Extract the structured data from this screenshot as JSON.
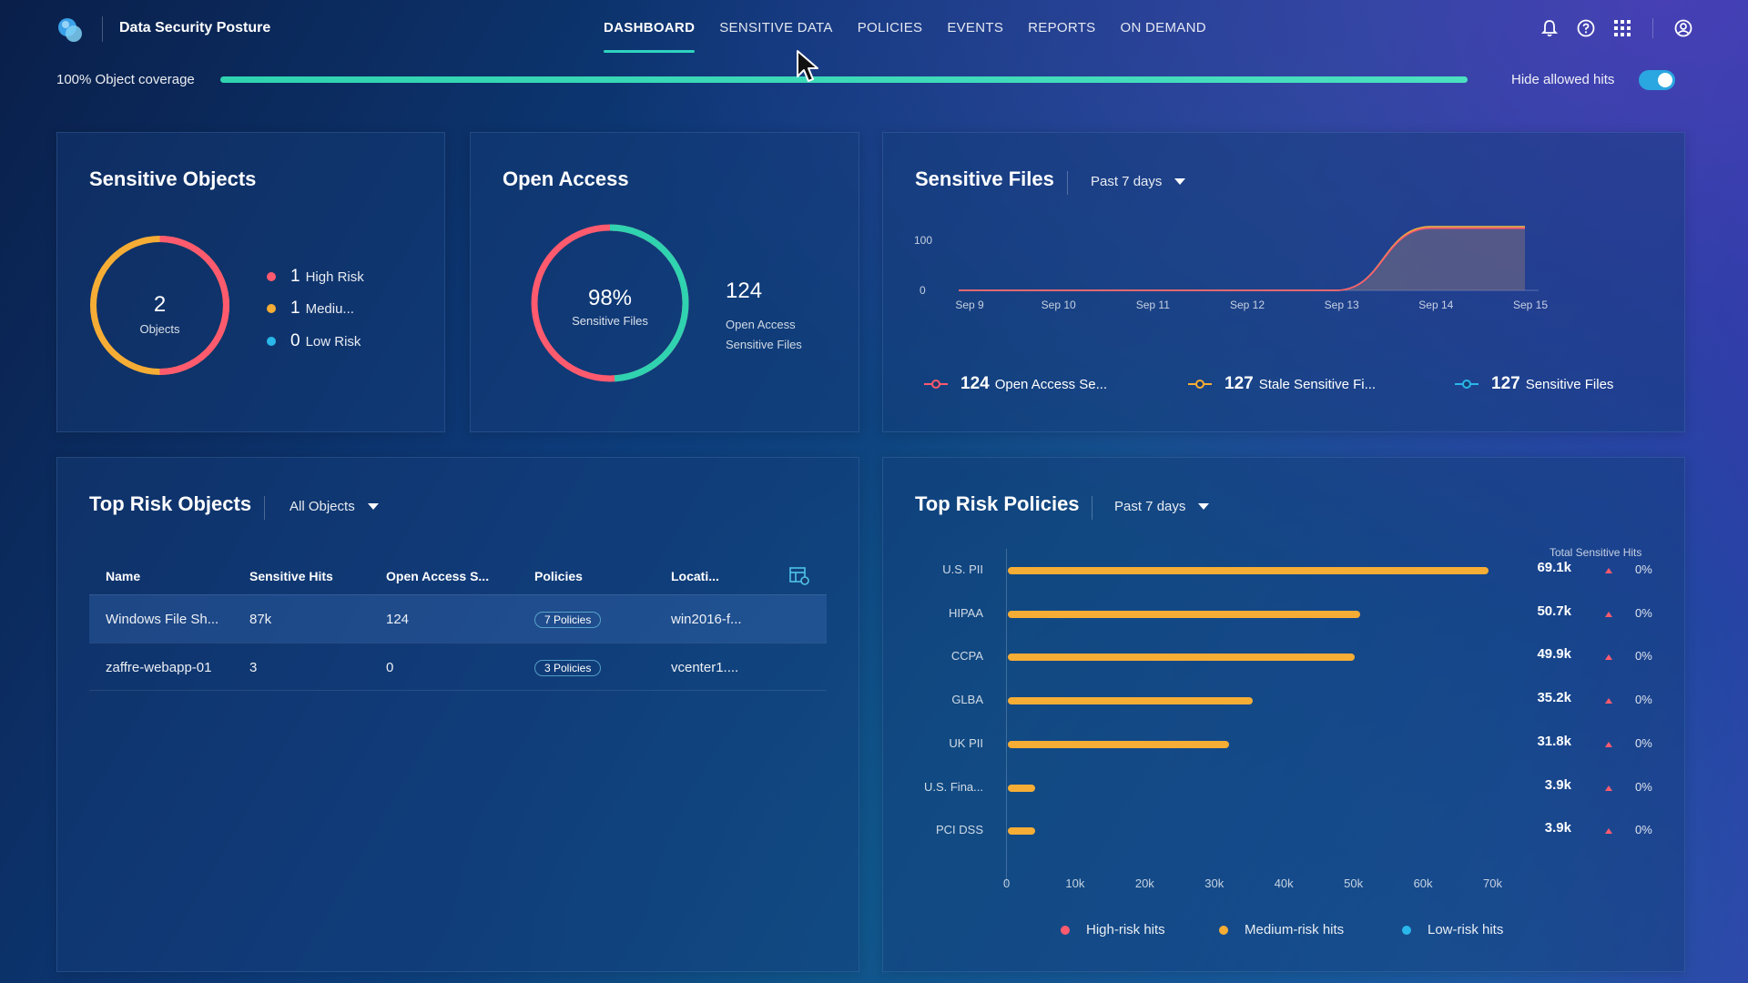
{
  "app": {
    "title": "Data Security Posture"
  },
  "nav": [
    {
      "label": "DASHBOARD",
      "active": true
    },
    {
      "label": "SENSITIVE DATA",
      "active": false
    },
    {
      "label": "POLICIES",
      "active": false
    },
    {
      "label": "EVENTS",
      "active": false
    },
    {
      "label": "REPORTS",
      "active": false
    },
    {
      "label": "ON DEMAND",
      "active": false
    }
  ],
  "header_icons": [
    "bell-icon",
    "help-icon",
    "apps-grid-icon",
    "user-account-icon"
  ],
  "coverage": {
    "label": "100% Object coverage",
    "value": 1.0
  },
  "hide_allowed": {
    "label": "Hide allowed hits",
    "enabled": true
  },
  "colors": {
    "high": "#ff5a6e",
    "medium": "#f6ad35",
    "low": "#2ab7ea",
    "accent": "#2fd3c0"
  },
  "sensitive_objects": {
    "title": "Sensitive Objects",
    "total": "2",
    "total_label": "Objects",
    "legend": [
      {
        "count": "1",
        "label": "High Risk",
        "color": "#ff5a6e",
        "value": 1
      },
      {
        "count": "1",
        "label": "Mediu...",
        "color": "#f6ad35",
        "value": 1
      },
      {
        "count": "0",
        "label": "Low Risk",
        "color": "#2ab7ea",
        "value": 0
      }
    ]
  },
  "open_access": {
    "title": "Open Access",
    "percent": "98%",
    "percent_label": "Sensitive Files",
    "percent_value": 0.98,
    "count": "124",
    "count_label_1": "Open Access",
    "count_label_2": "Sensitive Files"
  },
  "sensitive_files": {
    "title": "Sensitive Files",
    "range": "Past 7 days",
    "legend": [
      {
        "count": "124",
        "label": "Open Access Se...",
        "color": "#ff5a6e"
      },
      {
        "count": "127",
        "label": "Stale Sensitive Fi...",
        "color": "#f6ad35"
      },
      {
        "count": "127",
        "label": "Sensitive Files",
        "color": "#2ab7ea"
      }
    ]
  },
  "chart_data": [
    {
      "type": "area",
      "x": [
        "Sep 9",
        "Sep 10",
        "Sep 11",
        "Sep 12",
        "Sep 13",
        "Sep 14",
        "Sep 15"
      ],
      "yticks": [
        "0",
        "100"
      ],
      "ylim": [
        0,
        127
      ],
      "series": [
        {
          "name": "Open Access Se...",
          "values": [
            0,
            0,
            0,
            0,
            0,
            124,
            124
          ]
        },
        {
          "name": "Stale Sensitive Fi...",
          "values": [
            0,
            0,
            0,
            0,
            0,
            127,
            127
          ]
        },
        {
          "name": "Sensitive Files",
          "values": [
            0,
            0,
            0,
            0,
            0,
            127,
            127
          ]
        }
      ]
    },
    {
      "type": "bar",
      "orientation": "horizontal",
      "header": "Total Sensitive Hits",
      "categories": [
        "U.S. PII",
        "HIPAA",
        "CCPA",
        "GLBA",
        "UK PII",
        "U.S. Fina...",
        "PCI DSS"
      ],
      "values": [
        69100,
        50700,
        49900,
        35200,
        31800,
        3900,
        3900
      ],
      "value_labels": [
        "69.1k",
        "50.7k",
        "49.9k",
        "35.2k",
        "31.8k",
        "3.9k",
        "3.9k"
      ],
      "change": [
        "0%",
        "0%",
        "0%",
        "0%",
        "0%",
        "0%",
        "0%"
      ],
      "xticks": [
        "0",
        "10k",
        "20k",
        "30k",
        "40k",
        "50k",
        "60k",
        "70k"
      ],
      "xlim": [
        0,
        70000
      ],
      "legend": [
        {
          "label": "High-risk hits",
          "color": "#ff5a6e"
        },
        {
          "label": "Medium-risk hits",
          "color": "#f6ad35"
        },
        {
          "label": "Low-risk hits",
          "color": "#2ab7ea"
        }
      ]
    }
  ],
  "top_risk_objects": {
    "title": "Top Risk Objects",
    "filter": "All Objects",
    "columns": [
      "Name",
      "Sensitive Hits",
      "Open Access S...",
      "Policies",
      "Locati..."
    ],
    "rows": [
      {
        "name": "Windows File Sh...",
        "hits": "87k",
        "open": "124",
        "policies": "7 Policies",
        "location": "win2016-f..."
      },
      {
        "name": "zaffre-webapp-01",
        "hits": "3",
        "open": "0",
        "policies": "3 Policies",
        "location": "vcenter1...."
      }
    ]
  },
  "top_risk_policies": {
    "title": "Top Risk Policies",
    "range": "Past 7 days"
  }
}
